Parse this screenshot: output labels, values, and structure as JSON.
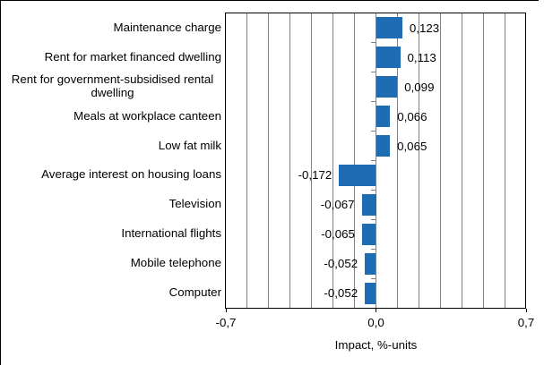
{
  "chart_data": {
    "type": "bar",
    "orientation": "horizontal",
    "categories": [
      "Maintenance charge",
      "Rent for market financed dwelling",
      "Rent for government-subsidised rental dwelling",
      "Meals at workplace canteen",
      "Low fat milk",
      "Average interest on housing loans",
      "Television",
      "International flights",
      "Mobile telephone",
      "Computer"
    ],
    "values": [
      0.123,
      0.113,
      0.099,
      0.066,
      0.065,
      -0.172,
      -0.067,
      -0.065,
      -0.052,
      -0.052
    ],
    "value_labels": [
      "0,123",
      "0,113",
      "0,099",
      "0,066",
      "0,065",
      "-0,172",
      "-0,067",
      "-0,065",
      "-0,052",
      "-0,052"
    ],
    "xlabel": "Impact, %-units",
    "xlim": [
      -0.7,
      0.7
    ],
    "x_ticks": [
      {
        "value": -0.7,
        "label": "-0,7"
      },
      {
        "value": 0.0,
        "label": "0,0"
      },
      {
        "value": 0.7,
        "label": "0,7"
      }
    ],
    "grid": "vertical gridlines every 0.1, zero axis line with category tick marks",
    "legend": "none",
    "title": "",
    "colors": {
      "bar": "#1F6CB4",
      "gridline": "#808080",
      "axis_border": "#000000",
      "text": "#000000",
      "background": "#FFFFFF"
    }
  }
}
